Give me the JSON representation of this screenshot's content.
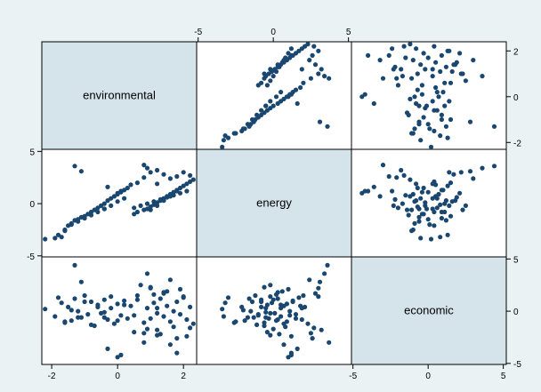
{
  "chart_data": {
    "type": "scatter",
    "title": "",
    "variables": [
      "environmental",
      "energy",
      "economic"
    ],
    "diagonal_fill": "#d5e3ea",
    "panel_fill": "#ffffff",
    "background": "#eaf2f3",
    "marker_color": "#1a476f",
    "axes": {
      "environmental": {
        "ticks": [
          -2,
          0,
          2
        ],
        "tick_labels": [
          "-2",
          "0",
          "2"
        ],
        "range": [
          -2.3,
          2.4
        ]
      },
      "energy": {
        "ticks": [
          -5,
          0,
          5
        ],
        "tick_labels": [
          "-5",
          "0",
          "5"
        ],
        "range": [
          -5.1,
          5.2
        ]
      },
      "economic": {
        "ticks": [
          -5,
          0,
          5
        ],
        "tick_labels": [
          "-5",
          "0",
          "5"
        ],
        "range": [
          -5.1,
          5.2
        ]
      }
    },
    "observations": {
      "environmental": [
        -2.2,
        -1.9,
        -1.7,
        -1.6,
        -1.5,
        -1.4,
        -1.3,
        -1.2,
        -1.1,
        -1.0,
        -0.9,
        -0.8,
        -0.7,
        -0.6,
        -0.5,
        -0.4,
        -0.3,
        -0.2,
        -0.1,
        0.0,
        0.1,
        0.2,
        0.3,
        0.4,
        -1.8,
        -1.6,
        -1.4,
        -1.2,
        -1.0,
        -0.8,
        -0.6,
        -0.4,
        -0.2,
        0.0,
        0.2,
        0.5,
        0.6,
        0.8,
        0.9,
        1.0,
        1.1,
        1.2,
        1.3,
        1.4,
        1.5,
        1.6,
        1.7,
        1.8,
        1.9,
        2.0,
        2.1,
        2.2,
        2.3,
        0.5,
        0.7,
        0.9,
        1.1,
        1.3,
        1.5,
        1.7,
        1.9,
        2.1,
        0.6,
        0.8,
        1.0,
        1.2,
        1.4,
        1.6,
        1.8,
        2.0,
        2.2,
        1.0,
        1.2,
        1.4,
        1.6,
        1.8,
        0.0,
        0.1,
        -0.3,
        -1.3,
        -1.1,
        0.8,
        0.9,
        1.2,
        -0.4
      ],
      "energy": [
        -3.4,
        -3.3,
        -3.2,
        -2.6,
        -2.1,
        -1.9,
        -1.6,
        -1.5,
        -1.3,
        -1.2,
        -1.0,
        -0.8,
        -0.6,
        -0.4,
        -0.2,
        0.0,
        0.3,
        0.5,
        0.7,
        0.9,
        1.1,
        1.3,
        1.5,
        1.8,
        -3.0,
        -2.5,
        -2.0,
        -1.7,
        -1.4,
        -1.1,
        -0.8,
        -0.5,
        -0.2,
        0.2,
        0.5,
        -1.0,
        -0.8,
        -0.6,
        -0.5,
        -0.3,
        -0.1,
        0.1,
        0.3,
        0.5,
        0.7,
        0.9,
        1.1,
        1.3,
        1.5,
        1.7,
        1.9,
        2.1,
        2.3,
        -0.4,
        -0.2,
        0.0,
        0.2,
        0.4,
        0.6,
        0.8,
        1.0,
        1.2,
        2.0,
        2.5,
        3.0,
        3.2,
        2.8,
        2.4,
        2.6,
        3.0,
        2.7,
        -0.6,
        -0.2,
        0.3,
        0.7,
        1.2,
        1.0,
        1.2,
        1.6,
        3.6,
        3.1,
        3.7,
        3.4,
        1.9,
        -0.5
      ],
      "economic": [
        0.2,
        -0.5,
        0.8,
        -1.1,
        0.4,
        -0.9,
        1.2,
        0.0,
        -0.6,
        1.5,
        -0.3,
        0.9,
        -1.4,
        0.6,
        -0.2,
        1.1,
        -0.8,
        0.3,
        -1.2,
        0.7,
        -0.4,
        1.0,
        -0.7,
        0.5,
        1.3,
        -1.0,
        0.1,
        -0.6,
        0.9,
        -1.3,
        0.4,
        -0.1,
        1.4,
        -0.9,
        0.6,
        -0.4,
        1.1,
        -1.1,
        0.3,
        -0.7,
        0.8,
        -0.2,
        1.2,
        -0.5,
        0.5,
        -1.0,
        0.0,
        0.9,
        -0.3,
        1.3,
        -0.8,
        0.4,
        -1.2,
        -2.0,
        2.5,
        -1.7,
        1.6,
        -2.2,
        1.9,
        -1.5,
        2.1,
        -2.4,
        1.5,
        -2.1,
        2.2,
        -1.8,
        1.7,
        3.0,
        -2.6,
        1.4,
        -1.6,
        2.3,
        -2.3,
        1.8,
        -3.2,
        -4.0,
        -4.4,
        -4.2,
        -3.6,
        4.4,
        2.8,
        -3.0,
        3.6,
        0.3,
        -0.6
      ]
    }
  }
}
